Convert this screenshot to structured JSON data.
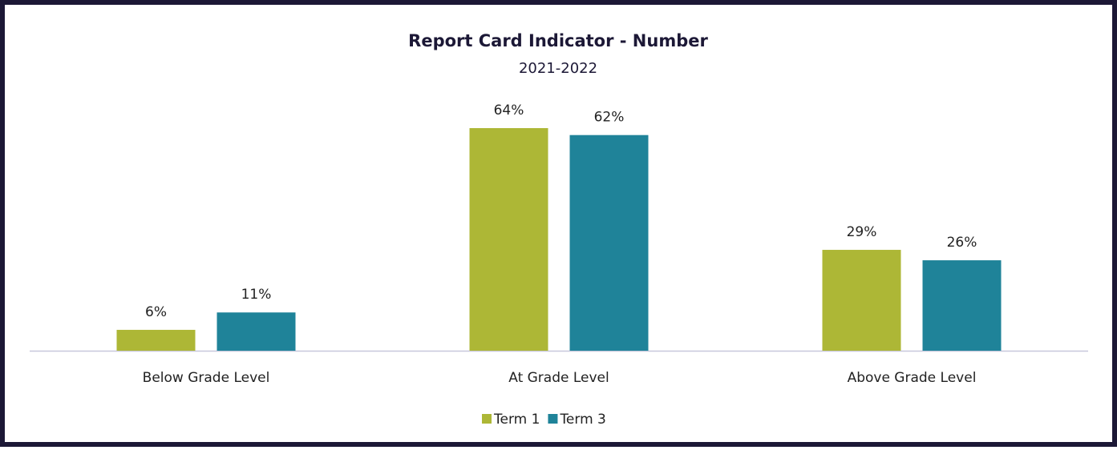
{
  "chart_data": {
    "type": "bar",
    "title": "Report Card Indicator - Number",
    "subtitle": "2021-2022",
    "categories": [
      "Below Grade Level",
      "At Grade Level",
      "Above Grade Level"
    ],
    "series": [
      {
        "name": "Term 1",
        "color": "#adb736",
        "values": [
          6,
          64,
          29
        ],
        "value_labels": [
          "6%",
          "64%",
          "29%"
        ]
      },
      {
        "name": "Term 3",
        "color": "#1f8399",
        "values": [
          11,
          62,
          26
        ],
        "value_labels": [
          "11%",
          "62%",
          "26%"
        ]
      }
    ],
    "legend": "bottom"
  }
}
